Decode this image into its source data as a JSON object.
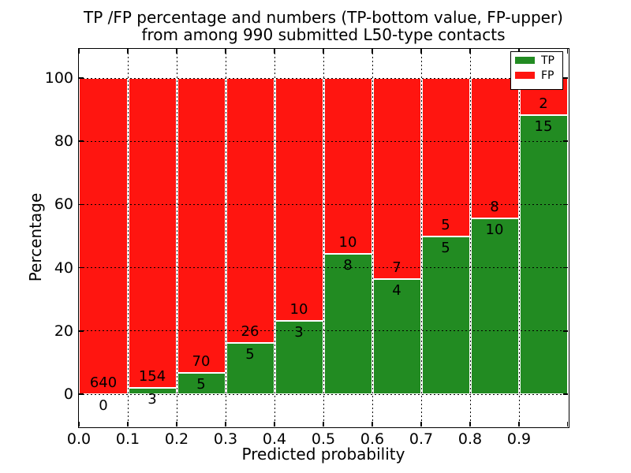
{
  "title": {
    "line1": "TP /FP percentage and numbers (TP-bottom value, FP-upper)",
    "line2": "from among 990 submitted L50-type contacts"
  },
  "axes": {
    "xlabel": "Predicted probability",
    "ylabel": "Percentage",
    "x_tick_labels": [
      "0.0",
      "0.1",
      "0.2",
      "0.3",
      "0.4",
      "0.5",
      "0.6",
      "0.7",
      "0.8",
      "0.9"
    ],
    "y_tick_labels": [
      "0",
      "20",
      "40",
      "60",
      "80",
      "100"
    ],
    "y_tick_values": [
      0,
      20,
      40,
      60,
      80,
      100
    ]
  },
  "legend": {
    "entries": [
      {
        "label": "TP",
        "color": "#228B22"
      },
      {
        "label": "FP",
        "color": "#FF1510"
      }
    ]
  },
  "colors": {
    "tp": "#228B22",
    "fp": "#FF1510",
    "grid": "#000000",
    "frame": "#000000",
    "bar_edge": "#FFFFFF",
    "background": "#FFFFFF",
    "text": "#000000"
  },
  "chart_data": {
    "type": "bar",
    "stacked": true,
    "normalized_per_bin_to": 100,
    "title": "TP /FP percentage and numbers (TP-bottom value, FP-upper)\nfrom among 990 submitted L50-type contacts",
    "xlabel": "Predicted probability",
    "ylabel": "Percentage",
    "xlim": [
      0.0,
      1.0
    ],
    "ylim": [
      -10,
      110
    ],
    "bin_width": 0.1,
    "grid": "dotted",
    "legend_position": "upper right",
    "categories": [
      "0.0-0.1",
      "0.1-0.2",
      "0.2-0.3",
      "0.3-0.4",
      "0.4-0.5",
      "0.5-0.6",
      "0.6-0.7",
      "0.7-0.8",
      "0.8-0.9",
      "0.9-1.0"
    ],
    "series": [
      {
        "name": "TP",
        "counts": [
          0,
          3,
          5,
          5,
          3,
          8,
          4,
          5,
          10,
          15
        ]
      },
      {
        "name": "FP",
        "counts": [
          640,
          154,
          70,
          26,
          10,
          10,
          7,
          5,
          8,
          2
        ]
      }
    ],
    "tp_percent_per_bin": [
      0.0,
      1.9,
      6.7,
      16.1,
      23.1,
      44.4,
      36.4,
      50.0,
      55.6,
      88.2
    ],
    "total_submitted": 990
  }
}
